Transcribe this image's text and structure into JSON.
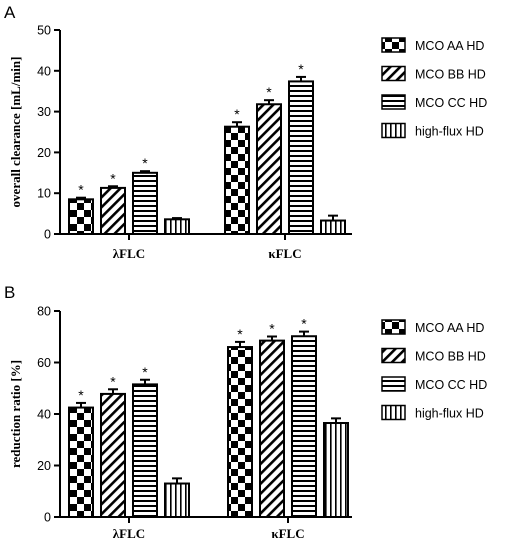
{
  "chart_data": [
    {
      "type": "bar",
      "panel_label": "A",
      "title": "",
      "xlabel": "",
      "ylabel": "overall clearance [mL/min]",
      "ylim": [
        0,
        50
      ],
      "yticks": [
        0,
        10,
        20,
        30,
        40,
        50
      ],
      "categories": [
        "λFLC",
        "κFLC"
      ],
      "series": [
        {
          "name": "MCO AA  HD",
          "pattern": "checker",
          "values": [
            8.5,
            26.3
          ],
          "errors": [
            0.4,
            1.1
          ],
          "significant": [
            true,
            true
          ]
        },
        {
          "name": "MCO BB  HD",
          "pattern": "diagonal",
          "values": [
            11.3,
            31.8
          ],
          "errors": [
            0.4,
            1.0
          ],
          "significant": [
            true,
            true
          ]
        },
        {
          "name": "MCO CC  HD",
          "pattern": "horizontal",
          "values": [
            15.0,
            37.4
          ],
          "errors": [
            0.4,
            1.1
          ],
          "significant": [
            true,
            true
          ]
        },
        {
          "name": "high-flux  HD",
          "pattern": "vertical",
          "values": [
            3.6,
            3.3
          ],
          "errors": [
            0.3,
            1.2
          ],
          "significant": [
            false,
            false
          ]
        }
      ],
      "annotation_symbol": "*",
      "legend_position": "right",
      "grid": false
    },
    {
      "type": "bar",
      "panel_label": "B",
      "title": "",
      "xlabel": "",
      "ylabel": "reduction ratio [%]",
      "ylim": [
        0,
        80
      ],
      "yticks": [
        0,
        20,
        40,
        60,
        80
      ],
      "categories": [
        "λFLC",
        "κFLC"
      ],
      "series": [
        {
          "name": "MCO AA  HD",
          "pattern": "checker",
          "values": [
            42.5,
            66.0
          ],
          "errors": [
            1.8,
            2.0
          ],
          "significant": [
            true,
            true
          ]
        },
        {
          "name": "MCO BB  HD",
          "pattern": "diagonal",
          "values": [
            47.8,
            68.5
          ],
          "errors": [
            1.8,
            1.6
          ],
          "significant": [
            true,
            true
          ]
        },
        {
          "name": "MCO CC  HD",
          "pattern": "horizontal",
          "values": [
            51.5,
            70.2
          ],
          "errors": [
            1.8,
            1.8
          ],
          "significant": [
            true,
            true
          ]
        },
        {
          "name": "high-flux  HD",
          "pattern": "vertical",
          "values": [
            13.0,
            36.5
          ],
          "errors": [
            2.0,
            1.8
          ],
          "significant": [
            false,
            false
          ]
        }
      ],
      "annotation_symbol": "*",
      "legend_position": "right",
      "grid": false
    }
  ]
}
